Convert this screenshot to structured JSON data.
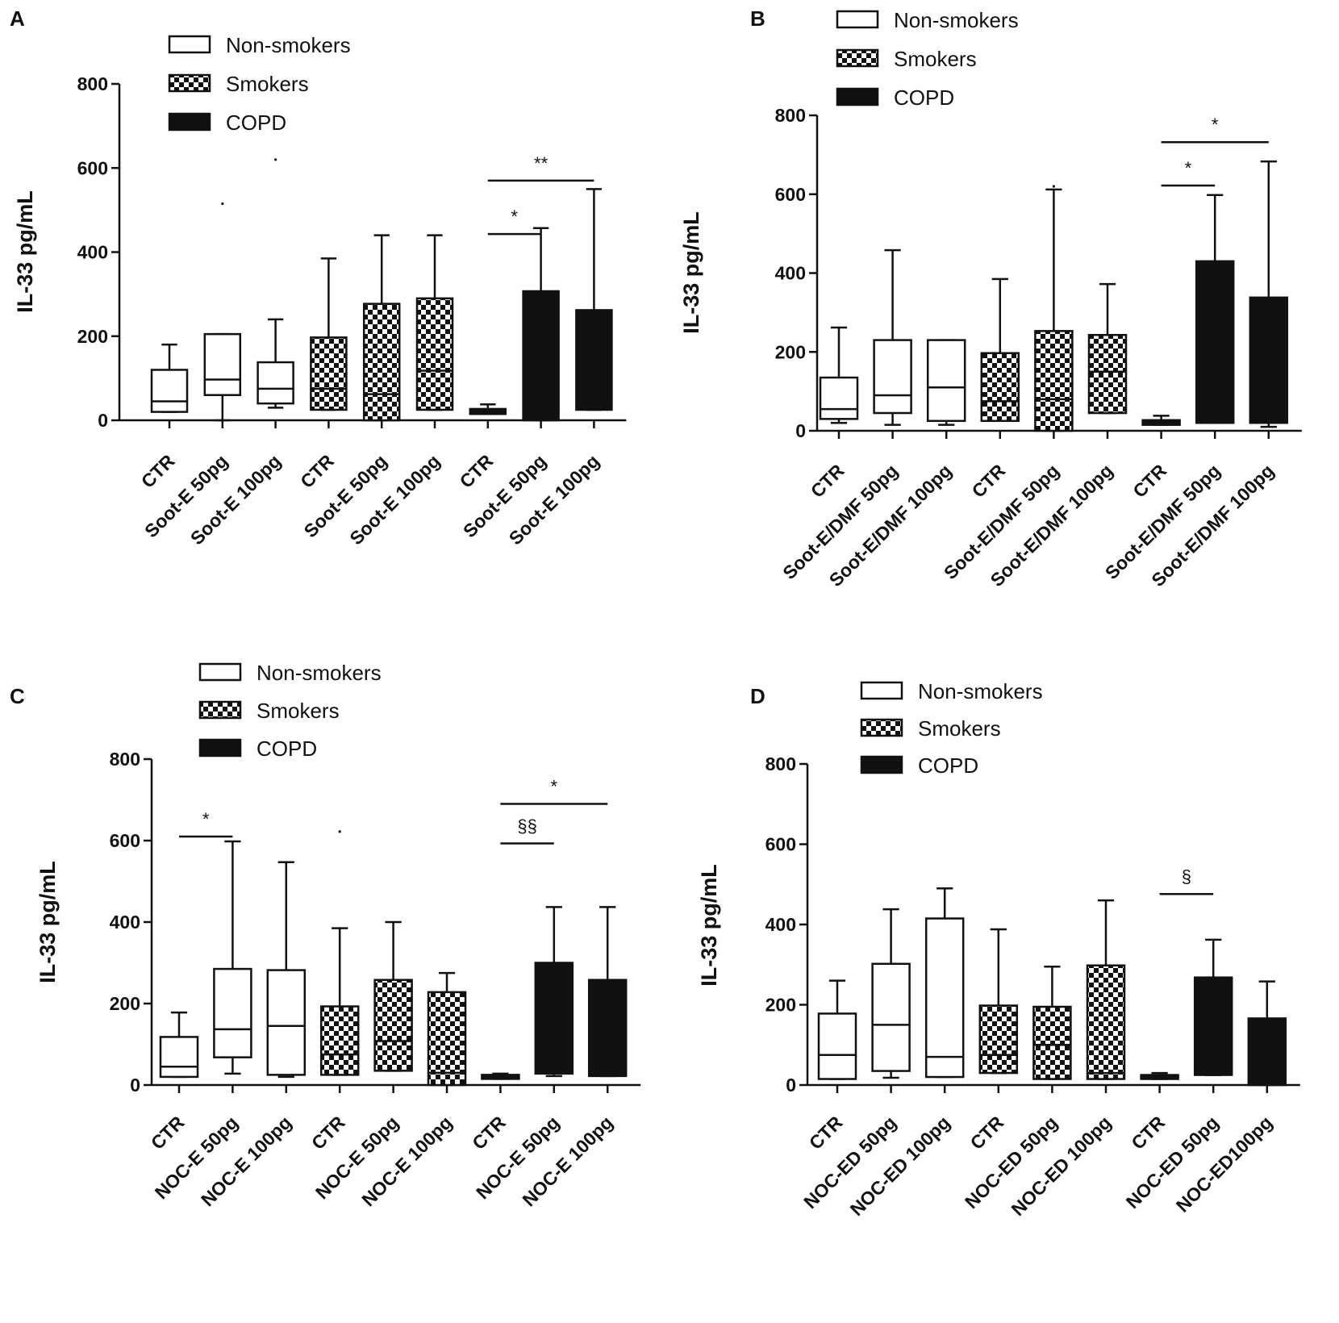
{
  "group_fills": {
    "Non-smokers": "open",
    "Smokers": "checkered",
    "COPD": "solid"
  },
  "colors": {
    "ink": "#111111",
    "background": "#ffffff"
  },
  "chart_data": [
    {
      "panel": "A",
      "type": "boxplot",
      "ylabel": "IL-33 pg/mL",
      "ylim": [
        0,
        800
      ],
      "yticks": [
        0,
        200,
        400,
        600,
        800
      ],
      "legend": [
        "Non-smokers",
        "Smokers",
        "COPD"
      ],
      "categories": [
        "CTR",
        "Soot-E 50pg",
        "Soot-E 100pg",
        "CTR",
        "Soot-E 50pg",
        "Soot-E 100pg",
        "CTR",
        "Soot-E 50pg",
        "Soot-E 100pg"
      ],
      "groups": [
        "Non-smokers",
        "Non-smokers",
        "Non-smokers",
        "Smokers",
        "Smokers",
        "Smokers",
        "COPD",
        "COPD",
        "COPD"
      ],
      "boxes": [
        {
          "min": 20,
          "q1": 20,
          "median": 45,
          "q3": 120,
          "max": 180
        },
        {
          "min": 0,
          "q1": 60,
          "median": 97,
          "q3": 205,
          "max": 205
        },
        {
          "min": 30,
          "q1": 40,
          "median": 75,
          "q3": 138,
          "max": 240
        },
        {
          "min": 25,
          "q1": 25,
          "median": 75,
          "q3": 197,
          "max": 385
        },
        {
          "min": 0,
          "q1": 0,
          "median": 62,
          "q3": 277,
          "max": 440
        },
        {
          "min": 25,
          "q1": 25,
          "median": 118,
          "q3": 290,
          "max": 440
        },
        {
          "min": 15,
          "q1": 15,
          "median": 20,
          "q3": 27,
          "max": 38
        },
        {
          "min": 0,
          "q1": 0,
          "median": 5,
          "q3": 307,
          "max": 457
        },
        {
          "min": 25,
          "q1": 25,
          "median": 40,
          "q3": 262,
          "max": 550
        }
      ],
      "outliers": [
        {
          "index": 1,
          "value": 515
        },
        {
          "index": 2,
          "value": 620
        }
      ],
      "significance": [
        {
          "from": 6,
          "to": 7,
          "y": 443,
          "label": "*"
        },
        {
          "from": 6,
          "to": 8,
          "y": 570,
          "label": "**"
        }
      ]
    },
    {
      "panel": "B",
      "type": "boxplot",
      "ylabel": "IL-33 pg/mL",
      "ylim": [
        0,
        800
      ],
      "yticks": [
        0,
        200,
        400,
        600,
        800
      ],
      "legend": [
        "Non-smokers",
        "Smokers",
        "COPD"
      ],
      "categories": [
        "CTR",
        "Soot-E/DMF 50pg",
        "Soot-E/DMF 100pg",
        "CTR",
        "Soot-E/DMF 50pg",
        "Soot-E/DMF 100pg",
        "CTR",
        "Soot-E/DMF 50pg",
        "Soot-E/DMF 100pg"
      ],
      "groups": [
        "Non-smokers",
        "Non-smokers",
        "Non-smokers",
        "Smokers",
        "Smokers",
        "Smokers",
        "COPD",
        "COPD",
        "COPD"
      ],
      "boxes": [
        {
          "min": 20,
          "q1": 30,
          "median": 55,
          "q3": 135,
          "max": 262
        },
        {
          "min": 15,
          "q1": 45,
          "median": 90,
          "q3": 230,
          "max": 458
        },
        {
          "min": 15,
          "q1": 25,
          "median": 110,
          "q3": 230,
          "max": 230
        },
        {
          "min": 25,
          "q1": 25,
          "median": 75,
          "q3": 197,
          "max": 385
        },
        {
          "min": 0,
          "q1": 0,
          "median": 80,
          "q3": 253,
          "max": 612
        },
        {
          "min": 45,
          "q1": 45,
          "median": 150,
          "q3": 243,
          "max": 372
        },
        {
          "min": 15,
          "q1": 15,
          "median": 20,
          "q3": 27,
          "max": 38
        },
        {
          "min": 20,
          "q1": 20,
          "median": 25,
          "q3": 430,
          "max": 598
        },
        {
          "min": 10,
          "q1": 20,
          "median": 30,
          "q3": 338,
          "max": 683
        }
      ],
      "outliers": [
        {
          "index": 4,
          "value": 620
        }
      ],
      "significance": [
        {
          "from": 6,
          "to": 7,
          "y": 622,
          "label": "*"
        },
        {
          "from": 6,
          "to": 8,
          "y": 732,
          "label": "*"
        }
      ]
    },
    {
      "panel": "C",
      "type": "boxplot",
      "ylabel": "IL-33 pg/mL",
      "ylim": [
        0,
        800
      ],
      "yticks": [
        0,
        200,
        400,
        600,
        800
      ],
      "legend": [
        "Non-smokers",
        "Smokers",
        "COPD"
      ],
      "categories": [
        "CTR",
        "NOC-E 50pg",
        "NOC-E 100pg",
        "CTR",
        "NOC-E 50pg",
        "NOC-E 100pg",
        "CTR",
        "NOC-E 50pg",
        "NOC-E 100pg"
      ],
      "groups": [
        "Non-smokers",
        "Non-smokers",
        "Non-smokers",
        "Smokers",
        "Smokers",
        "Smokers",
        "COPD",
        "COPD",
        "COPD"
      ],
      "boxes": [
        {
          "min": 20,
          "q1": 20,
          "median": 45,
          "q3": 118,
          "max": 178
        },
        {
          "min": 28,
          "q1": 68,
          "median": 137,
          "q3": 285,
          "max": 598
        },
        {
          "min": 20,
          "q1": 25,
          "median": 145,
          "q3": 282,
          "max": 547
        },
        {
          "min": 25,
          "q1": 25,
          "median": 75,
          "q3": 193,
          "max": 385
        },
        {
          "min": 35,
          "q1": 35,
          "median": 108,
          "q3": 258,
          "max": 400
        },
        {
          "min": 0,
          "q1": 0,
          "median": 30,
          "q3": 228,
          "max": 275
        },
        {
          "min": 15,
          "q1": 15,
          "median": 20,
          "q3": 25,
          "max": 28
        },
        {
          "min": 22,
          "q1": 28,
          "median": 30,
          "q3": 300,
          "max": 437
        },
        {
          "min": 22,
          "q1": 22,
          "median": 25,
          "q3": 258,
          "max": 437
        }
      ],
      "outliers": [
        {
          "index": 3,
          "value": 622
        }
      ],
      "significance": [
        {
          "from": 0,
          "to": 1,
          "y": 610,
          "label": "*"
        },
        {
          "from": 6,
          "to": 7,
          "y": 593,
          "label": "§§"
        },
        {
          "from": 6,
          "to": 8,
          "y": 690,
          "label": "*"
        }
      ]
    },
    {
      "panel": "D",
      "type": "boxplot",
      "ylabel": "IL-33 pg/mL",
      "ylim": [
        0,
        800
      ],
      "yticks": [
        0,
        200,
        400,
        600,
        800
      ],
      "legend": [
        "Non-smokers",
        "Smokers",
        "COPD"
      ],
      "categories": [
        "CTR",
        "NOC-ED 50pg",
        "NOC-ED 100pg",
        "CTR",
        "NOC-ED 50pg",
        "NOC-ED 100pg",
        "CTR",
        "NOC-ED 50pg",
        "NOC-ED100pg"
      ],
      "groups": [
        "Non-smokers",
        "Non-smokers",
        "Non-smokers",
        "Smokers",
        "Smokers",
        "Smokers",
        "COPD",
        "COPD",
        "COPD"
      ],
      "boxes": [
        {
          "min": 15,
          "q1": 15,
          "median": 75,
          "q3": 178,
          "max": 260
        },
        {
          "min": 18,
          "q1": 35,
          "median": 150,
          "q3": 302,
          "max": 438
        },
        {
          "min": 20,
          "q1": 20,
          "median": 70,
          "q3": 415,
          "max": 490
        },
        {
          "min": 30,
          "q1": 30,
          "median": 75,
          "q3": 198,
          "max": 388
        },
        {
          "min": 15,
          "q1": 15,
          "median": 100,
          "q3": 195,
          "max": 295
        },
        {
          "min": 15,
          "q1": 15,
          "median": 30,
          "q3": 298,
          "max": 460
        },
        {
          "min": 15,
          "q1": 15,
          "median": 20,
          "q3": 25,
          "max": 30
        },
        {
          "min": 25,
          "q1": 25,
          "median": 30,
          "q3": 268,
          "max": 362
        },
        {
          "min": 0,
          "q1": 0,
          "median": 30,
          "q3": 166,
          "max": 258
        }
      ],
      "outliers": [],
      "significance": [
        {
          "from": 6,
          "to": 7,
          "y": 476,
          "label": "§"
        }
      ]
    }
  ]
}
